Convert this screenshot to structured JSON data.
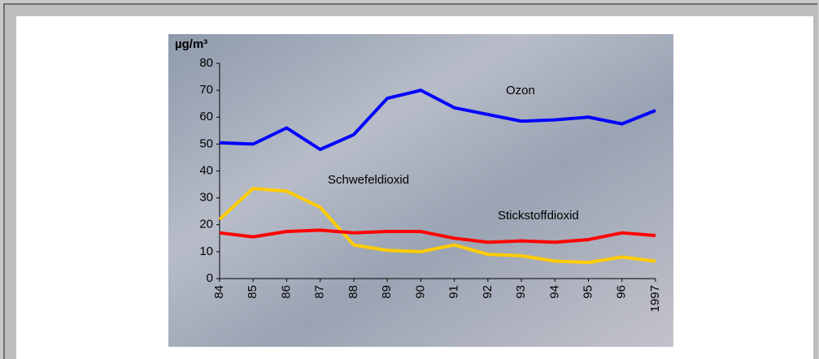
{
  "chart_data": {
    "type": "line",
    "y_label": "µg/m³",
    "categories": [
      "84",
      "85",
      "86",
      "87",
      "88",
      "89",
      "90",
      "91",
      "92",
      "93",
      "94",
      "95",
      "96",
      "1997"
    ],
    "series": [
      {
        "name": "Ozon",
        "color": "#0000ff",
        "values": [
          50.5,
          50,
          56,
          48,
          53.5,
          67,
          70,
          63.5,
          61,
          58.5,
          59,
          60,
          57.5,
          62.5
        ]
      },
      {
        "name": "Schwefeldioxid",
        "color": "#ffcc00",
        "values": [
          22,
          33.5,
          32.5,
          26.5,
          12.5,
          10.5,
          10,
          12.5,
          9,
          8.5,
          6.5,
          6,
          8,
          6.5
        ]
      },
      {
        "name": "Stickstoffdioxid",
        "color": "#ff0000",
        "values": [
          17,
          15.5,
          17.5,
          18,
          17,
          17.5,
          17.5,
          15,
          13.5,
          14,
          13.5,
          14.5,
          17,
          16
        ]
      }
    ],
    "ylim": [
      0,
      80
    ],
    "yticks": [
      0,
      10,
      20,
      30,
      40,
      50,
      60,
      70,
      80
    ]
  }
}
